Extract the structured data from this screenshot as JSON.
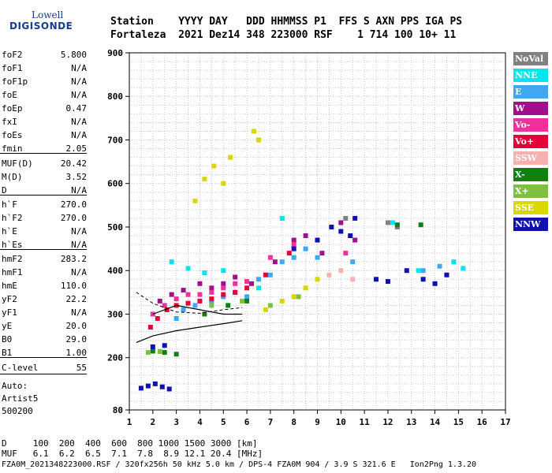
{
  "logo": {
    "line1": "Lowell",
    "line2": "DIGISONDE"
  },
  "header": {
    "line1": "Station    YYYY DAY   DDD HHMMSS P1  FFS S AXN PPS IGA PS",
    "line2": "Fortaleza  2021 Dez14 348 223000 RSF    1 714 100 10+ 11"
  },
  "params": [
    {
      "name": "foF2",
      "value": "5.800"
    },
    {
      "name": "foF1",
      "value": "N/A"
    },
    {
      "name": "foF1p",
      "value": "N/A"
    },
    {
      "name": "foE",
      "value": "N/A"
    },
    {
      "name": "foEp",
      "value": "0.47"
    },
    {
      "name": "fxI",
      "value": "N/A"
    },
    {
      "name": "foEs",
      "value": "N/A"
    },
    {
      "name": "fmin",
      "value": "2.05"
    },
    {
      "name": "MUF(D)",
      "value": "20.42"
    },
    {
      "name": "M(D)",
      "value": "3.52"
    },
    {
      "name": "D",
      "value": "N/A"
    },
    {
      "name": "h`F",
      "value": "270.0"
    },
    {
      "name": "h`F2",
      "value": "270.0"
    },
    {
      "name": "h`E",
      "value": "N/A"
    },
    {
      "name": "h`Es",
      "value": "N/A"
    },
    {
      "name": "hmF2",
      "value": "283.2"
    },
    {
      "name": "hmF1",
      "value": "N/A"
    },
    {
      "name": "hmE",
      "value": "110.0"
    },
    {
      "name": "yF2",
      "value": "22.2"
    },
    {
      "name": "yF1",
      "value": "N/A"
    },
    {
      "name": "yE",
      "value": "20.0"
    },
    {
      "name": "B0",
      "value": "29.0"
    },
    {
      "name": "B1",
      "value": "1.00"
    },
    {
      "name": "C-level",
      "value": "55"
    }
  ],
  "auto": {
    "line1": "Auto:",
    "line2": "Artist5",
    "line3": "500200"
  },
  "legend": [
    {
      "label": "NoVal",
      "bg": "#808080",
      "fg": "#ffffff"
    },
    {
      "label": "NNE",
      "bg": "#00e5ee",
      "fg": "#ffffff"
    },
    {
      "label": "E",
      "bg": "#40a8f0",
      "fg": "#ffffff"
    },
    {
      "label": "W",
      "bg": "#a0108c",
      "fg": "#ffffff"
    },
    {
      "label": "Vo-",
      "bg": "#f0309c",
      "fg": "#ffffff"
    },
    {
      "label": "Vo+",
      "bg": "#e8003a",
      "fg": "#ffffff"
    },
    {
      "label": "SSW",
      "bg": "#f8b0b0",
      "fg": "#ffffff"
    },
    {
      "label": "X-",
      "bg": "#108010",
      "fg": "#ffffff"
    },
    {
      "label": "X+",
      "bg": "#80c040",
      "fg": "#ffffff"
    },
    {
      "label": "SSE",
      "bg": "#d8d800",
      "fg": "#ffffff"
    },
    {
      "label": "NNW",
      "bg": "#1010b0",
      "fg": "#ffffff"
    }
  ],
  "bottom": {
    "line1": "D     100  200  400  600  800 1000 1500 3000 [km]",
    "line2": "MUF   6.1  6.2  6.5  7.1  7.8  8.9 12.1 20.4 [MHz]",
    "line3": "FZA0M_2021348223000.RSF / 320fx256h 50 kHz 5.0 km / DPS-4 FZA0M 904 / 3.9 S 321.6 E   Ion2Png 1.3.20"
  },
  "chart_data": {
    "type": "scatter",
    "title": "",
    "xlabel": "",
    "ylabel": "",
    "xlim": [
      1,
      17
    ],
    "ylim": [
      80,
      900
    ],
    "x_ticks": [
      1,
      2,
      3,
      4,
      5,
      6,
      7,
      8,
      9,
      10,
      11,
      12,
      13,
      14,
      15,
      16,
      17
    ],
    "y_ticks": [
      80,
      200,
      300,
      400,
      500,
      600,
      700,
      800,
      900
    ],
    "grid": true,
    "legend_position": "right",
    "series": [
      {
        "name": "NoVal",
        "color": "#808080",
        "points": [
          [
            10.2,
            520
          ],
          [
            12.4,
            500
          ],
          [
            12.0,
            510
          ]
        ]
      },
      {
        "name": "NNE",
        "color": "#00e5ee",
        "points": [
          [
            2.8,
            420
          ],
          [
            3.5,
            405
          ],
          [
            4.2,
            395
          ],
          [
            5.0,
            400
          ],
          [
            6.5,
            360
          ],
          [
            7.5,
            520
          ],
          [
            12.2,
            510
          ],
          [
            13.3,
            400
          ],
          [
            14.8,
            420
          ],
          [
            15.2,
            405
          ]
        ]
      },
      {
        "name": "E",
        "color": "#40a8f0",
        "points": [
          [
            3.0,
            290
          ],
          [
            3.3,
            310
          ],
          [
            3.8,
            320
          ],
          [
            4.5,
            330
          ],
          [
            5.0,
            340
          ],
          [
            5.5,
            350
          ],
          [
            6.0,
            340
          ],
          [
            6.5,
            380
          ],
          [
            7.0,
            390
          ],
          [
            7.5,
            420
          ],
          [
            8.0,
            430
          ],
          [
            8.5,
            450
          ],
          [
            9.0,
            430
          ],
          [
            10.5,
            420
          ],
          [
            13.5,
            400
          ],
          [
            14.2,
            410
          ]
        ]
      },
      {
        "name": "W",
        "color": "#a0108c",
        "points": [
          [
            2.3,
            330
          ],
          [
            2.8,
            345
          ],
          [
            3.3,
            355
          ],
          [
            4.0,
            370
          ],
          [
            4.5,
            360
          ],
          [
            5.0,
            370
          ],
          [
            5.5,
            385
          ],
          [
            6.2,
            370
          ],
          [
            7.2,
            420
          ],
          [
            8.0,
            470
          ],
          [
            8.5,
            480
          ],
          [
            9.2,
            440
          ],
          [
            10.0,
            510
          ],
          [
            10.6,
            470
          ]
        ]
      },
      {
        "name": "Vo-",
        "color": "#f0309c",
        "points": [
          [
            2.0,
            300
          ],
          [
            2.5,
            320
          ],
          [
            3.0,
            335
          ],
          [
            3.5,
            345
          ],
          [
            4.0,
            345
          ],
          [
            4.5,
            350
          ],
          [
            5.0,
            360
          ],
          [
            5.5,
            370
          ],
          [
            6.0,
            375
          ],
          [
            7.0,
            430
          ],
          [
            8.0,
            460
          ],
          [
            9.0,
            470
          ],
          [
            10.2,
            440
          ]
        ]
      },
      {
        "name": "Vo+",
        "color": "#e8003a",
        "points": [
          [
            1.9,
            270
          ],
          [
            2.2,
            290
          ],
          [
            2.6,
            310
          ],
          [
            3.0,
            320
          ],
          [
            3.5,
            325
          ],
          [
            4.0,
            330
          ],
          [
            4.5,
            335
          ],
          [
            5.0,
            345
          ],
          [
            5.5,
            350
          ],
          [
            6.0,
            360
          ],
          [
            6.8,
            390
          ],
          [
            7.8,
            440
          ]
        ]
      },
      {
        "name": "SSW",
        "color": "#f8b0b0",
        "points": [
          [
            8.5,
            360
          ],
          [
            9.0,
            380
          ],
          [
            9.5,
            390
          ],
          [
            10.0,
            400
          ],
          [
            10.5,
            380
          ]
        ]
      },
      {
        "name": "X-",
        "color": "#108010",
        "points": [
          [
            2.0,
            215
          ],
          [
            2.5,
            212
          ],
          [
            3.0,
            208
          ],
          [
            4.2,
            300
          ],
          [
            5.2,
            320
          ],
          [
            6.0,
            330
          ],
          [
            12.4,
            505
          ],
          [
            13.4,
            505
          ]
        ]
      },
      {
        "name": "X+",
        "color": "#80c040",
        "points": [
          [
            1.8,
            212
          ],
          [
            2.3,
            214
          ],
          [
            4.5,
            320
          ],
          [
            5.8,
            330
          ],
          [
            7.0,
            320
          ],
          [
            8.2,
            340
          ]
        ]
      },
      {
        "name": "SSE",
        "color": "#d8d800",
        "points": [
          [
            3.8,
            560
          ],
          [
            4.2,
            610
          ],
          [
            4.6,
            640
          ],
          [
            5.0,
            600
          ],
          [
            5.3,
            660
          ],
          [
            6.3,
            720
          ],
          [
            6.5,
            700
          ],
          [
            6.8,
            310
          ],
          [
            7.5,
            330
          ],
          [
            8.0,
            340
          ],
          [
            8.5,
            360
          ],
          [
            9.0,
            380
          ]
        ]
      },
      {
        "name": "NNW",
        "color": "#1010b0",
        "points": [
          [
            1.5,
            130
          ],
          [
            1.8,
            135
          ],
          [
            2.1,
            140
          ],
          [
            2.4,
            133
          ],
          [
            2.7,
            128
          ],
          [
            2.0,
            225
          ],
          [
            2.5,
            228
          ],
          [
            8.0,
            450
          ],
          [
            9.0,
            470
          ],
          [
            9.6,
            500
          ],
          [
            10.0,
            490
          ],
          [
            10.4,
            480
          ],
          [
            10.6,
            520
          ],
          [
            11.5,
            380
          ],
          [
            12.0,
            375
          ],
          [
            12.8,
            400
          ],
          [
            13.5,
            380
          ],
          [
            14.0,
            370
          ],
          [
            14.5,
            390
          ]
        ]
      }
    ],
    "profile_curve": [
      [
        1.3,
        235
      ],
      [
        2.0,
        250
      ],
      [
        3.0,
        262
      ],
      [
        4.0,
        270
      ],
      [
        5.0,
        278
      ],
      [
        5.8,
        285
      ]
    ],
    "dashed_curve": [
      [
        1.3,
        350
      ],
      [
        2.0,
        325
      ],
      [
        3.0,
        305
      ],
      [
        4.0,
        302
      ],
      [
        5.0,
        310
      ],
      [
        5.8,
        315
      ]
    ],
    "trace_curve": [
      [
        2.0,
        300
      ],
      [
        3.0,
        320
      ],
      [
        4.0,
        310
      ],
      [
        5.0,
        300
      ],
      [
        5.8,
        300
      ]
    ]
  }
}
